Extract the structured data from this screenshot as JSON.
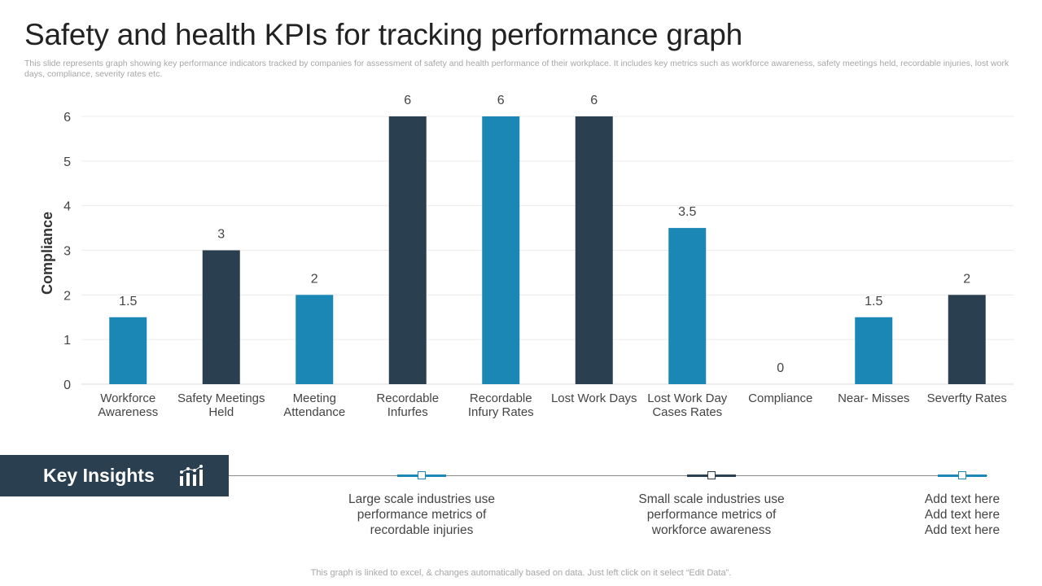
{
  "page": {
    "title": "Safety and health KPIs for tracking performance graph",
    "subtitle": "This slide represents graph showing key performance indicators tracked by companies for assessment of safety and health performance of their workplace. It includes key metrics such as workforce awareness, safety meetings held, recordable injuries, lost work days, compliance, severity rates etc.",
    "footer": "This graph is linked to excel, & changes automatically based on data. Just left click on it select “Edit Data”."
  },
  "chart_data": {
    "type": "bar",
    "title": "",
    "xlabel": "",
    "ylabel": "Compliance",
    "ylim": [
      0,
      6
    ],
    "yticks": [
      0,
      1,
      2,
      3,
      4,
      5,
      6
    ],
    "grid": true,
    "categories": [
      [
        "Workforce",
        "Awareness"
      ],
      [
        "Safety Meetings",
        "Held"
      ],
      [
        "Meeting",
        "Attendance"
      ],
      [
        "Recordable",
        "Infurfes"
      ],
      [
        "Recordable",
        "Infury Rates"
      ],
      [
        "Lost Work Days"
      ],
      [
        "Lost Work Day",
        "Cases Rates"
      ],
      [
        "Compliance"
      ],
      [
        "Near- Misses"
      ],
      [
        "Severfty Rates"
      ]
    ],
    "values": [
      1.5,
      3,
      2,
      6,
      6,
      6,
      3.5,
      0,
      1.5,
      2
    ],
    "data_labels": [
      "1.5",
      "3",
      "2",
      "6",
      "6",
      "6",
      "3.5",
      "0",
      "1.5",
      "2"
    ],
    "bar_colors": [
      "#1b87b5",
      "#2a3f50",
      "#1b87b5",
      "#2a3f50",
      "#1b87b5",
      "#2a3f50",
      "#1b87b5",
      "#2a3f50",
      "#1b87b5",
      "#2a3f50"
    ]
  },
  "insights": {
    "label": "Key Insights",
    "icon": "bar-chart-icon",
    "items": [
      {
        "lines": [
          "Large scale industries use",
          "performance metrics of",
          "recordable injuries"
        ],
        "color": "#1b87b5"
      },
      {
        "lines": [
          "Small scale industries use",
          "performance metrics of",
          "workforce awareness"
        ],
        "color": "#2a3f50"
      },
      {
        "lines": [
          "Add text here",
          "Add text here",
          "Add text here"
        ],
        "color": "#1b87b5"
      }
    ]
  },
  "colors": {
    "accent_blue": "#1b87b5",
    "accent_dark": "#2a3f50",
    "grid": "#ececec"
  }
}
